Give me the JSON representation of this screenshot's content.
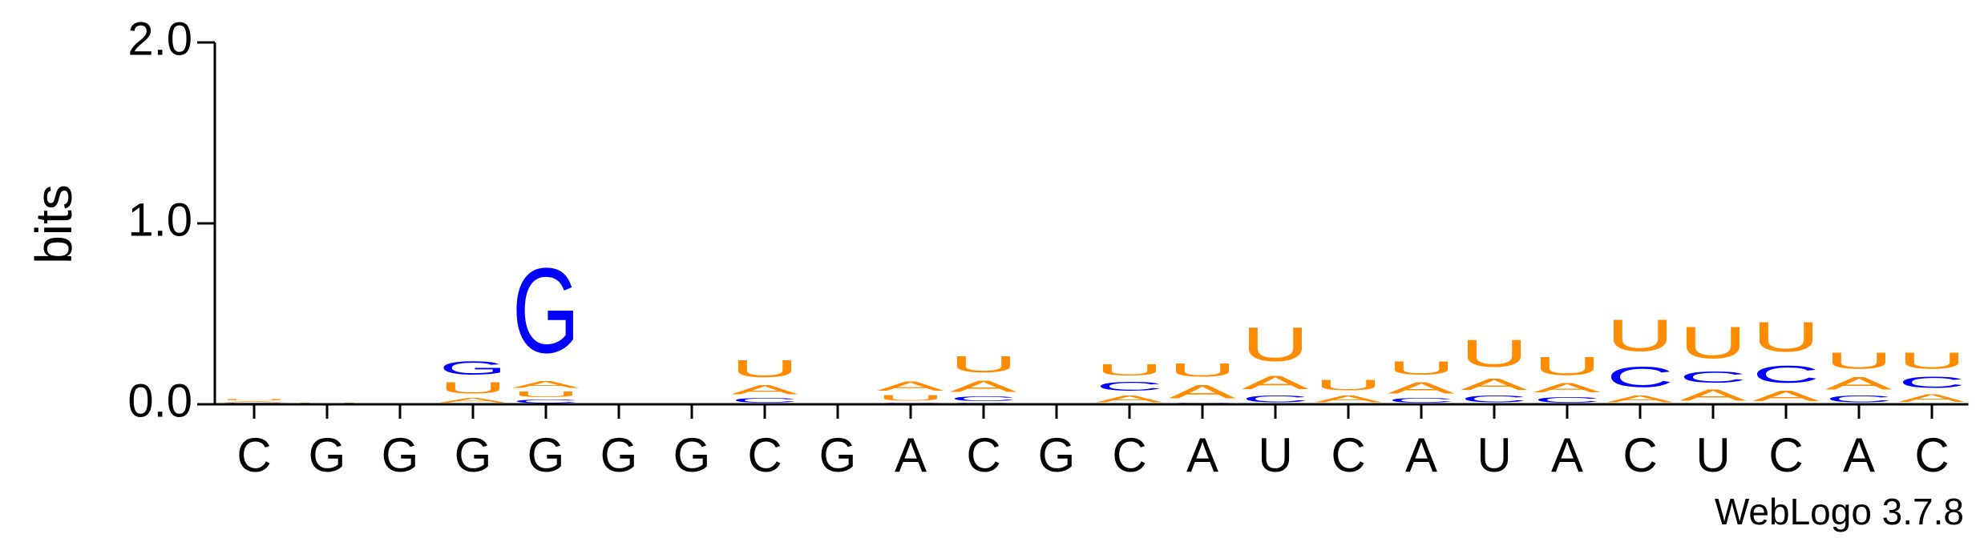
{
  "chart_data": {
    "type": "logo",
    "ylabel": "bits",
    "ylim": [
      0,
      2
    ],
    "yticks": [
      {
        "value": 0,
        "label": "0.0"
      },
      {
        "value": 1,
        "label": "1.0"
      },
      {
        "value": 2,
        "label": "2.0"
      }
    ],
    "categories": [
      "C",
      "G",
      "G",
      "G",
      "G",
      "G",
      "G",
      "C",
      "G",
      "A",
      "C",
      "G",
      "C",
      "A",
      "U",
      "C",
      "A",
      "U",
      "A",
      "C",
      "U",
      "C",
      "A",
      "C"
    ],
    "series": [
      {
        "name": "A",
        "color": "#ff8c00",
        "values": [
          0.01,
          0,
          0,
          0.04,
          0.06,
          0,
          0,
          0.08,
          0,
          0.08,
          0.1,
          0,
          0.06,
          0.12,
          0.12,
          0.06,
          0.1,
          0.1,
          0.08,
          0.06,
          0.1,
          0.09,
          0.11,
          0.07
        ]
      },
      {
        "name": "C",
        "color": "#0000ff",
        "values": [
          0.005,
          0,
          0,
          0,
          0.03,
          0,
          0,
          0.04,
          0,
          0.01,
          0.04,
          0,
          0.08,
          0.01,
          0.06,
          0,
          0.04,
          0.06,
          0.05,
          0.18,
          0.1,
          0.15,
          0.06,
          0.1
        ]
      },
      {
        "name": "G",
        "color": "#0000ff",
        "values": [
          0.005,
          0,
          0,
          0.12,
          0.75,
          0,
          0,
          0,
          0,
          0,
          0.01,
          0,
          0,
          0,
          0,
          0,
          0,
          0,
          0,
          0,
          0,
          0,
          0,
          0
        ]
      },
      {
        "name": "U",
        "color": "#ff8c00",
        "values": [
          0.01,
          0.01,
          0,
          0.1,
          0.05,
          0,
          0.005,
          0.15,
          0,
          0.05,
          0.14,
          0,
          0.1,
          0.12,
          0.3,
          0.09,
          0.12,
          0.24,
          0.16,
          0.28,
          0.28,
          0.26,
          0.14,
          0.14
        ]
      }
    ],
    "footer": "WebLogo 3.7.8"
  }
}
